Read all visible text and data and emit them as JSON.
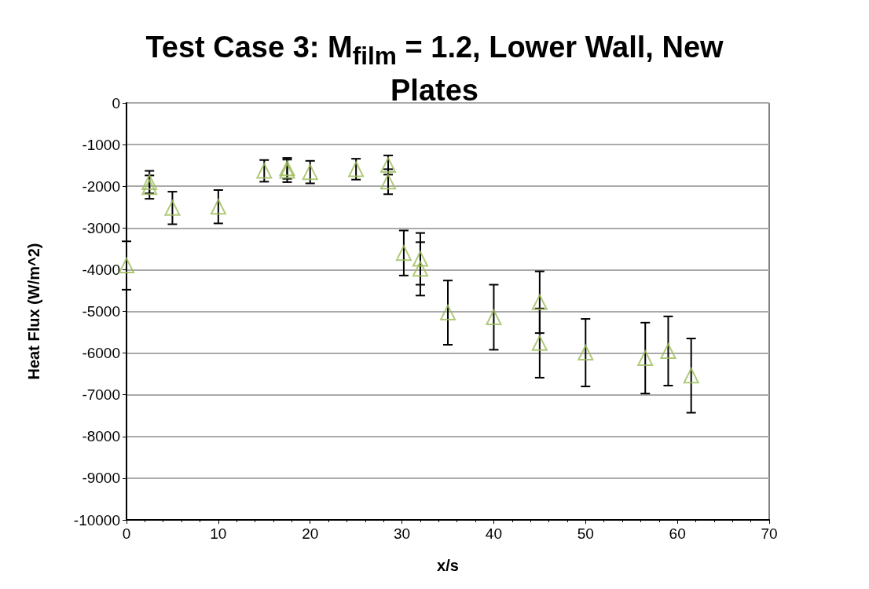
{
  "chart_data": {
    "type": "scatter",
    "title": "Test Case 3: M$_{film}$ = 1.2, Lower Wall, New Plates",
    "xlabel": "x/s",
    "ylabel": "Heat Flux (W/m^2)",
    "x": [
      0,
      2.5,
      2.5,
      5,
      10,
      15,
      17.5,
      17.5,
      20,
      25,
      28.5,
      28.5,
      30.2,
      32,
      32,
      35,
      40,
      45,
      45,
      50,
      56.5,
      59,
      61.5
    ],
    "series": [
      {
        "color": "#9bbb59",
        "values": [
          -3900,
          -1900,
          -2020,
          -2520,
          -2490,
          -1630,
          -1570,
          -1630,
          -1660,
          -1590,
          -1490,
          -1890,
          -3600,
          -3740,
          -3980,
          -5030,
          -5140,
          -4780,
          -5760,
          -5990,
          -6120,
          -5950,
          -6540
        ],
        "errors": [
          580,
          270,
          280,
          390,
          400,
          260,
          250,
          270,
          270,
          250,
          230,
          300,
          540,
          620,
          640,
          770,
          780,
          740,
          830,
          810,
          850,
          830,
          890
        ]
      }
    ],
    "marker": "triangle",
    "xlim": [
      0,
      70
    ],
    "xticks": [
      0,
      10,
      20,
      30,
      40,
      50,
      60,
      70
    ],
    "ylim": [
      -10000,
      0
    ],
    "yticks": [
      -10000,
      -9000,
      -8000,
      -7000,
      -6000,
      -5000,
      -4000,
      -3000,
      -2000,
      -1000,
      0
    ],
    "grid": "y"
  }
}
